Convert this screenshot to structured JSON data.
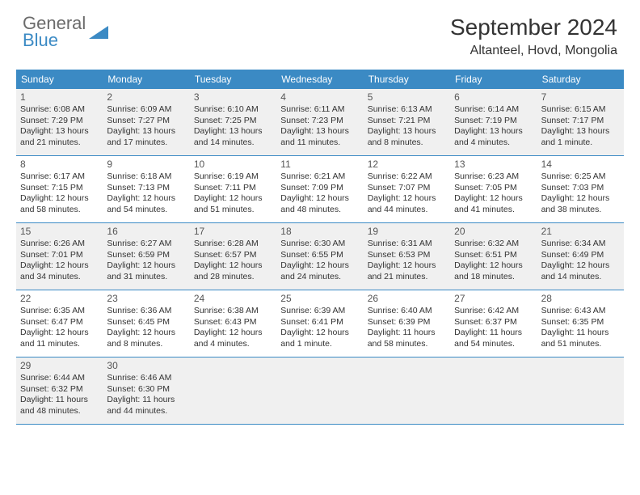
{
  "logo": {
    "text1": "General",
    "text2": "Blue"
  },
  "title": "September 2024",
  "location": "Altanteel, Hovd, Mongolia",
  "colors": {
    "header_bg": "#3b8ac4",
    "header_text": "#ffffff",
    "shaded_bg": "#f0f0f0",
    "border": "#3b8ac4",
    "logo_gray": "#6b6b6b",
    "logo_blue": "#3b8ac4"
  },
  "weekdays": [
    "Sunday",
    "Monday",
    "Tuesday",
    "Wednesday",
    "Thursday",
    "Friday",
    "Saturday"
  ],
  "weeks": [
    {
      "shaded": true,
      "days": [
        {
          "num": "1",
          "sunrise": "6:08 AM",
          "sunset": "7:29 PM",
          "daylight": "13 hours and 21 minutes."
        },
        {
          "num": "2",
          "sunrise": "6:09 AM",
          "sunset": "7:27 PM",
          "daylight": "13 hours and 17 minutes."
        },
        {
          "num": "3",
          "sunrise": "6:10 AM",
          "sunset": "7:25 PM",
          "daylight": "13 hours and 14 minutes."
        },
        {
          "num": "4",
          "sunrise": "6:11 AM",
          "sunset": "7:23 PM",
          "daylight": "13 hours and 11 minutes."
        },
        {
          "num": "5",
          "sunrise": "6:13 AM",
          "sunset": "7:21 PM",
          "daylight": "13 hours and 8 minutes."
        },
        {
          "num": "6",
          "sunrise": "6:14 AM",
          "sunset": "7:19 PM",
          "daylight": "13 hours and 4 minutes."
        },
        {
          "num": "7",
          "sunrise": "6:15 AM",
          "sunset": "7:17 PM",
          "daylight": "13 hours and 1 minute."
        }
      ]
    },
    {
      "shaded": false,
      "days": [
        {
          "num": "8",
          "sunrise": "6:17 AM",
          "sunset": "7:15 PM",
          "daylight": "12 hours and 58 minutes."
        },
        {
          "num": "9",
          "sunrise": "6:18 AM",
          "sunset": "7:13 PM",
          "daylight": "12 hours and 54 minutes."
        },
        {
          "num": "10",
          "sunrise": "6:19 AM",
          "sunset": "7:11 PM",
          "daylight": "12 hours and 51 minutes."
        },
        {
          "num": "11",
          "sunrise": "6:21 AM",
          "sunset": "7:09 PM",
          "daylight": "12 hours and 48 minutes."
        },
        {
          "num": "12",
          "sunrise": "6:22 AM",
          "sunset": "7:07 PM",
          "daylight": "12 hours and 44 minutes."
        },
        {
          "num": "13",
          "sunrise": "6:23 AM",
          "sunset": "7:05 PM",
          "daylight": "12 hours and 41 minutes."
        },
        {
          "num": "14",
          "sunrise": "6:25 AM",
          "sunset": "7:03 PM",
          "daylight": "12 hours and 38 minutes."
        }
      ]
    },
    {
      "shaded": true,
      "days": [
        {
          "num": "15",
          "sunrise": "6:26 AM",
          "sunset": "7:01 PM",
          "daylight": "12 hours and 34 minutes."
        },
        {
          "num": "16",
          "sunrise": "6:27 AM",
          "sunset": "6:59 PM",
          "daylight": "12 hours and 31 minutes."
        },
        {
          "num": "17",
          "sunrise": "6:28 AM",
          "sunset": "6:57 PM",
          "daylight": "12 hours and 28 minutes."
        },
        {
          "num": "18",
          "sunrise": "6:30 AM",
          "sunset": "6:55 PM",
          "daylight": "12 hours and 24 minutes."
        },
        {
          "num": "19",
          "sunrise": "6:31 AM",
          "sunset": "6:53 PM",
          "daylight": "12 hours and 21 minutes."
        },
        {
          "num": "20",
          "sunrise": "6:32 AM",
          "sunset": "6:51 PM",
          "daylight": "12 hours and 18 minutes."
        },
        {
          "num": "21",
          "sunrise": "6:34 AM",
          "sunset": "6:49 PM",
          "daylight": "12 hours and 14 minutes."
        }
      ]
    },
    {
      "shaded": false,
      "days": [
        {
          "num": "22",
          "sunrise": "6:35 AM",
          "sunset": "6:47 PM",
          "daylight": "12 hours and 11 minutes."
        },
        {
          "num": "23",
          "sunrise": "6:36 AM",
          "sunset": "6:45 PM",
          "daylight": "12 hours and 8 minutes."
        },
        {
          "num": "24",
          "sunrise": "6:38 AM",
          "sunset": "6:43 PM",
          "daylight": "12 hours and 4 minutes."
        },
        {
          "num": "25",
          "sunrise": "6:39 AM",
          "sunset": "6:41 PM",
          "daylight": "12 hours and 1 minute."
        },
        {
          "num": "26",
          "sunrise": "6:40 AM",
          "sunset": "6:39 PM",
          "daylight": "11 hours and 58 minutes."
        },
        {
          "num": "27",
          "sunrise": "6:42 AM",
          "sunset": "6:37 PM",
          "daylight": "11 hours and 54 minutes."
        },
        {
          "num": "28",
          "sunrise": "6:43 AM",
          "sunset": "6:35 PM",
          "daylight": "11 hours and 51 minutes."
        }
      ]
    },
    {
      "shaded": true,
      "days": [
        {
          "num": "29",
          "sunrise": "6:44 AM",
          "sunset": "6:32 PM",
          "daylight": "11 hours and 48 minutes."
        },
        {
          "num": "30",
          "sunrise": "6:46 AM",
          "sunset": "6:30 PM",
          "daylight": "11 hours and 44 minutes."
        },
        null,
        null,
        null,
        null,
        null
      ]
    }
  ],
  "labels": {
    "sunrise": "Sunrise:",
    "sunset": "Sunset:",
    "daylight": "Daylight:"
  }
}
